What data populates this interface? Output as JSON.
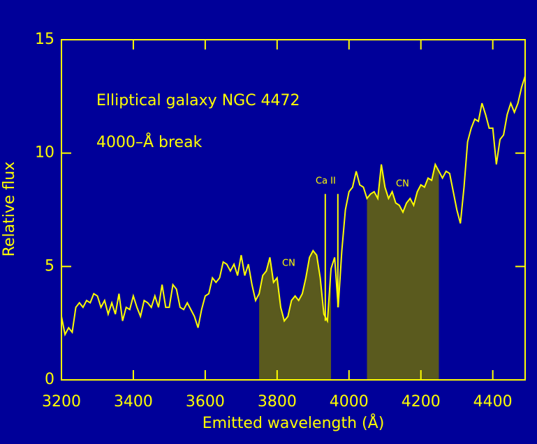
{
  "chart_data": {
    "type": "line",
    "annotations": [
      "Elliptical galaxy NGC 4472",
      "4000–Å break"
    ],
    "line_labels": [
      "Ca II",
      "CN",
      "CN"
    ],
    "xlabel": "Emitted wavelength (Å)",
    "ylabel": "Relative flux",
    "xlim": [
      3200,
      4490
    ],
    "ylim": [
      0,
      15
    ],
    "xticks": [
      3200,
      3400,
      3600,
      3800,
      4000,
      4200,
      4400
    ],
    "yticks": [
      0,
      5,
      10,
      15
    ],
    "color": "#ffff00",
    "background": "#000099",
    "shaded_ranges": [
      [
        3750,
        3950
      ],
      [
        4050,
        4250
      ]
    ],
    "shade_color": "#5a5a1e",
    "marker_lines": {
      "x": [
        3934,
        3969
      ],
      "top": 8.2
    },
    "x": [
      3200,
      3210,
      3220,
      3230,
      3240,
      3250,
      3260,
      3270,
      3280,
      3290,
      3300,
      3310,
      3320,
      3330,
      3340,
      3350,
      3360,
      3370,
      3380,
      3390,
      3400,
      3410,
      3420,
      3430,
      3440,
      3450,
      3460,
      3470,
      3480,
      3490,
      3500,
      3510,
      3520,
      3530,
      3540,
      3550,
      3560,
      3570,
      3580,
      3590,
      3600,
      3610,
      3620,
      3630,
      3640,
      3650,
      3660,
      3670,
      3680,
      3690,
      3700,
      3710,
      3720,
      3730,
      3740,
      3750,
      3760,
      3770,
      3780,
      3790,
      3800,
      3810,
      3820,
      3830,
      3840,
      3850,
      3860,
      3870,
      3880,
      3890,
      3900,
      3910,
      3920,
      3930,
      3940,
      3950,
      3960,
      3970,
      3980,
      3990,
      4000,
      4010,
      4020,
      4030,
      4040,
      4050,
      4060,
      4070,
      4080,
      4090,
      4100,
      4110,
      4120,
      4130,
      4140,
      4150,
      4160,
      4170,
      4180,
      4190,
      4200,
      4210,
      4220,
      4230,
      4240,
      4250,
      4260,
      4270,
      4280,
      4290,
      4300,
      4310,
      4320,
      4330,
      4340,
      4350,
      4360,
      4370,
      4380,
      4390,
      4400,
      4410,
      4420,
      4430,
      4440,
      4450,
      4460,
      4470,
      4480,
      4490
    ],
    "values": [
      2.8,
      2.0,
      2.3,
      2.1,
      3.2,
      3.4,
      3.2,
      3.5,
      3.4,
      3.8,
      3.7,
      3.2,
      3.5,
      2.9,
      3.4,
      2.9,
      3.8,
      2.6,
      3.2,
      3.1,
      3.7,
      3.2,
      2.8,
      3.5,
      3.4,
      3.2,
      3.7,
      3.2,
      4.2,
      3.2,
      3.2,
      4.2,
      4.0,
      3.2,
      3.1,
      3.4,
      3.1,
      2.8,
      2.3,
      3.1,
      3.7,
      3.8,
      4.5,
      4.3,
      4.5,
      5.2,
      5.1,
      4.8,
      5.1,
      4.6,
      5.5,
      4.6,
      5.1,
      4.2,
      3.5,
      3.8,
      4.6,
      4.8,
      5.4,
      4.3,
      4.5,
      3.2,
      2.6,
      2.8,
      3.5,
      3.7,
      3.5,
      3.8,
      4.5,
      5.4,
      5.7,
      5.5,
      4.5,
      2.9,
      2.6,
      4.9,
      5.4,
      3.2,
      5.7,
      7.5,
      8.3,
      8.5,
      9.2,
      8.6,
      8.5,
      8.0,
      8.2,
      8.3,
      8.0,
      9.5,
      8.5,
      8.0,
      8.3,
      7.8,
      7.7,
      7.4,
      7.8,
      8.0,
      7.7,
      8.3,
      8.6,
      8.5,
      8.9,
      8.8,
      9.5,
      9.2,
      8.9,
      9.2,
      9.1,
      8.3,
      7.5,
      6.9,
      8.5,
      10.5,
      11.1,
      11.5,
      11.4,
      12.2,
      11.7,
      11.1,
      11.1,
      9.5,
      10.6,
      10.8,
      11.7,
      12.2,
      11.8,
      12.2,
      12.9,
      13.4
    ]
  }
}
